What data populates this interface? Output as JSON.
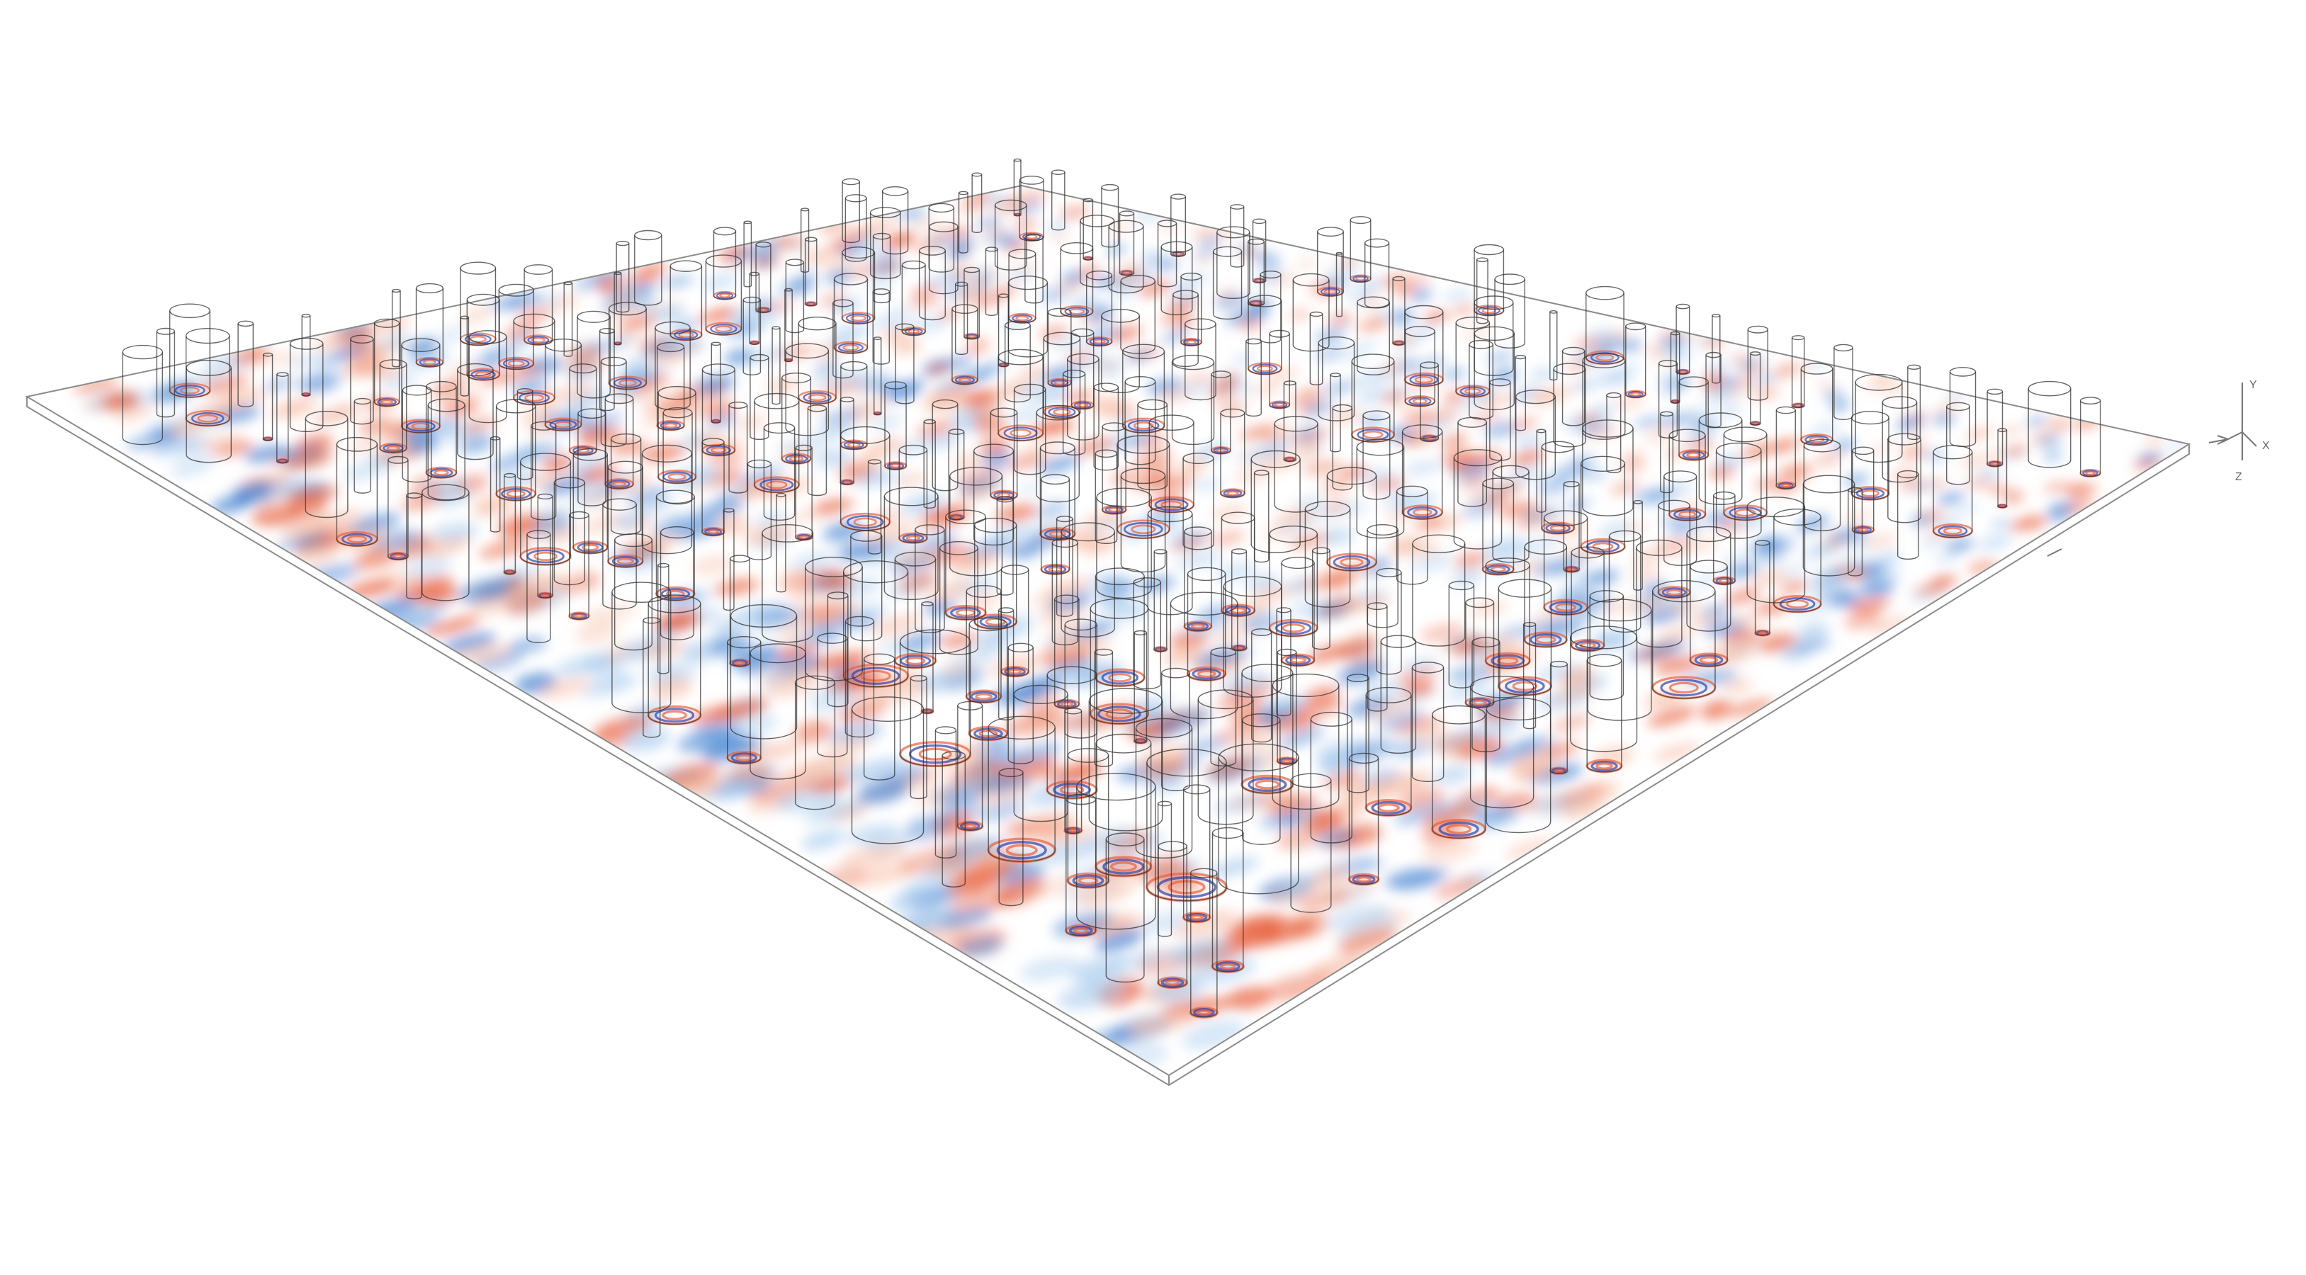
{
  "scene": {
    "palette": {
      "background": "#ffffff",
      "positive": "#e8603c",
      "positive_light": "#f7b9a1",
      "negative": "#3f7fd0",
      "negative_light": "#a9cbee",
      "deep_negative": "#2f3fa8",
      "outline": "#333333",
      "plate_edge": "#888888"
    },
    "triad": {
      "labels": [
        "Y",
        "X",
        "Z"
      ]
    }
  }
}
